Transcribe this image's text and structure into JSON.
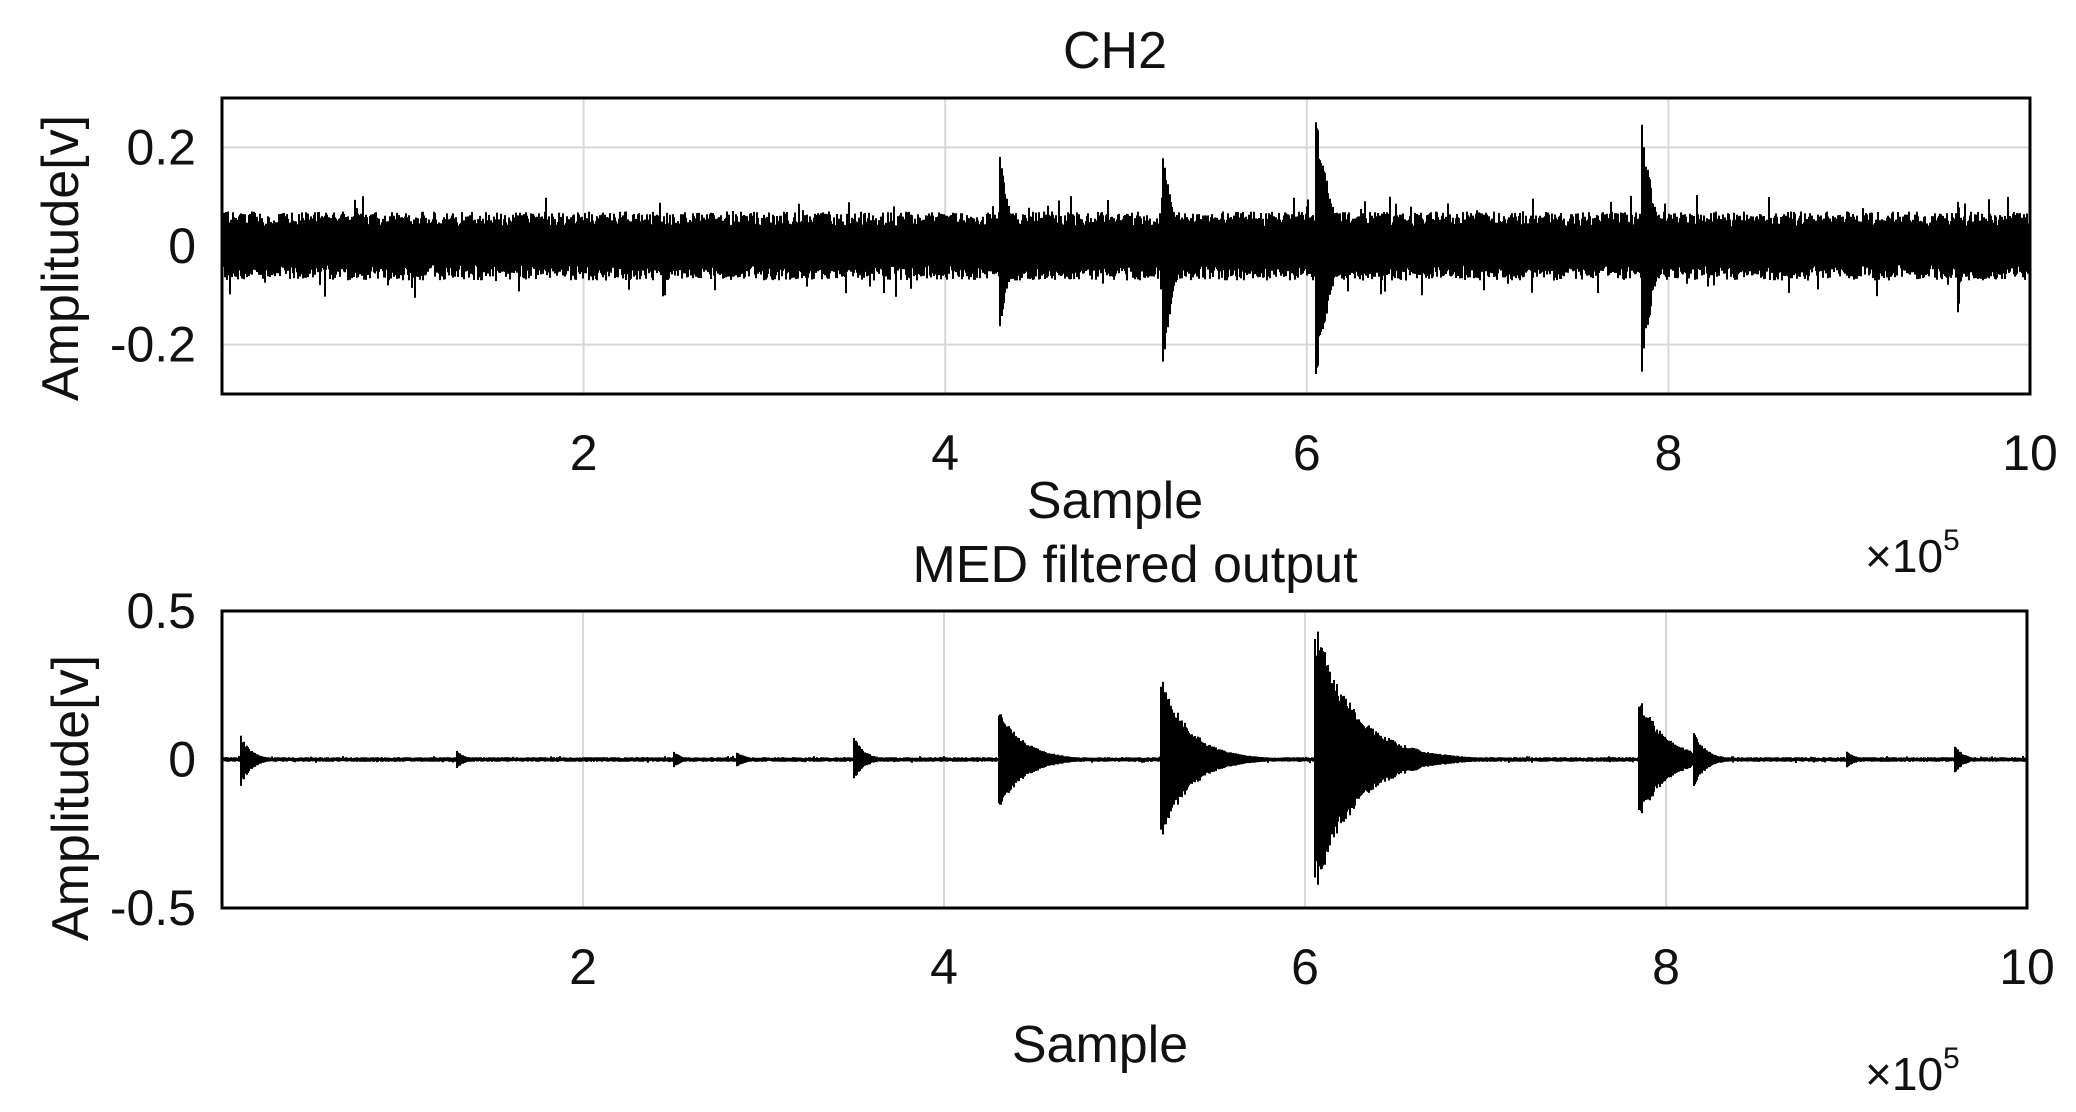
{
  "chart_data": [
    {
      "type": "line",
      "title": "CH2",
      "xlabel": "Sample",
      "ylabel": "Amplitude[v]",
      "x_multiplier_label": "×10",
      "x_multiplier_exponent": "5",
      "xlim": [
        0,
        1000000
      ],
      "ylim": [
        -0.3,
        0.3
      ],
      "x_ticks": [
        200000,
        400000,
        600000,
        800000,
        1000000
      ],
      "x_tick_labels": [
        "2",
        "4",
        "6",
        "8",
        "10"
      ],
      "y_ticks": [
        0.2,
        0,
        -0.2
      ],
      "y_tick_labels": [
        "0.2",
        "0",
        "-0.2"
      ],
      "grid": true,
      "series_color": "#000000",
      "noise_amplitude": 0.07,
      "impulses": [
        {
          "x": 430000,
          "peak": 0.2,
          "trough": -0.18,
          "decay": 6000
        },
        {
          "x": 520000,
          "peak": 0.22,
          "trough": -0.29,
          "decay": 6000
        },
        {
          "x": 605000,
          "peak": 0.29,
          "trough": -0.3,
          "decay": 8000
        },
        {
          "x": 785000,
          "peak": 0.27,
          "trough": -0.28,
          "decay": 7000
        },
        {
          "x": 960000,
          "peak": 0.1,
          "trough": -0.15,
          "decay": 3000
        }
      ]
    },
    {
      "type": "line",
      "title": "MED filtered output",
      "xlabel": "Sample",
      "ylabel": "Amplitude[v]",
      "x_multiplier_label": "×10",
      "x_multiplier_exponent": "5",
      "xlim": [
        0,
        1000000
      ],
      "ylim": [
        -0.5,
        0.5
      ],
      "x_ticks": [
        200000,
        400000,
        600000,
        800000,
        1000000
      ],
      "x_tick_labels": [
        "2",
        "4",
        "6",
        "8",
        "10"
      ],
      "y_ticks": [
        0.5,
        0,
        -0.5
      ],
      "y_tick_labels": [
        "0.5",
        "0",
        "-0.5"
      ],
      "grid": true,
      "series_color": "#000000",
      "noise_amplitude": 0.008,
      "impulses": [
        {
          "x": 10000,
          "peak": 0.09,
          "trough": -0.1,
          "decay": 6000
        },
        {
          "x": 130000,
          "peak": 0.03,
          "trough": -0.03,
          "decay": 5000
        },
        {
          "x": 250000,
          "peak": 0.03,
          "trough": -0.03,
          "decay": 5000
        },
        {
          "x": 285000,
          "peak": 0.03,
          "trough": -0.03,
          "decay": 5000
        },
        {
          "x": 350000,
          "peak": 0.08,
          "trough": -0.07,
          "decay": 6000
        },
        {
          "x": 430000,
          "peak": 0.18,
          "trough": -0.18,
          "decay": 14000
        },
        {
          "x": 520000,
          "peak": 0.29,
          "trough": -0.28,
          "decay": 16000
        },
        {
          "x": 605000,
          "peak": 0.48,
          "trough": -0.47,
          "decay": 22000
        },
        {
          "x": 785000,
          "peak": 0.23,
          "trough": -0.22,
          "decay": 14000
        },
        {
          "x": 815000,
          "peak": 0.1,
          "trough": -0.1,
          "decay": 7000
        },
        {
          "x": 900000,
          "peak": 0.03,
          "trough": -0.03,
          "decay": 5000
        },
        {
          "x": 960000,
          "peak": 0.05,
          "trough": -0.05,
          "decay": 5000
        }
      ]
    }
  ]
}
